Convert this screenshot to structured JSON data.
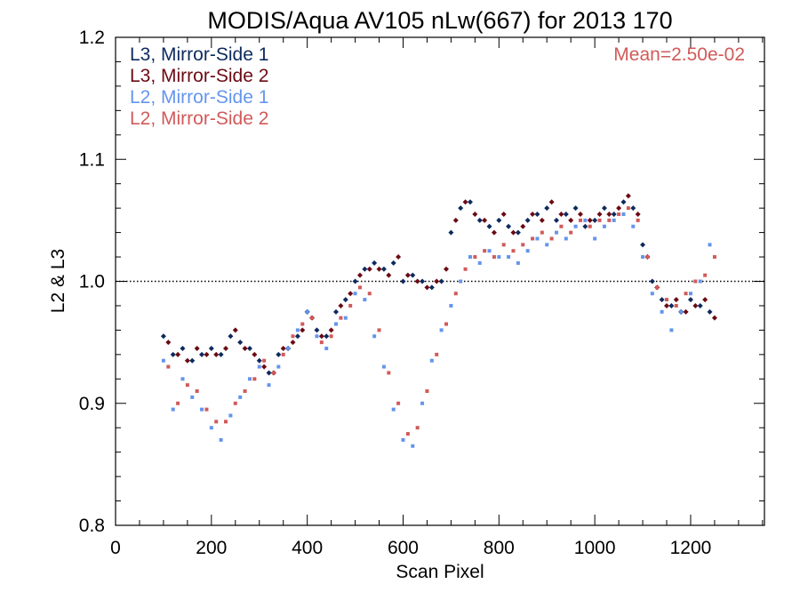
{
  "chart_data": {
    "type": "scatter",
    "title": "MODIS/Aqua AV105 nLw(667) for 2013 170",
    "xlabel": "Scan Pixel",
    "ylabel": "L2 & L3",
    "xlim": [
      0,
      1354
    ],
    "ylim": [
      0.8,
      1.2
    ],
    "xticks": [
      0,
      200,
      400,
      600,
      800,
      1000,
      1200
    ],
    "xtick_labels": [
      "0",
      "200",
      "400",
      "600",
      "800",
      "1000",
      "1200"
    ],
    "yticks": [
      0.8,
      0.9,
      1.0,
      1.1,
      1.2
    ],
    "ytick_labels": [
      "0.8",
      "0.9",
      "1.0",
      "1.1",
      "1.2"
    ],
    "reference_line": 1.0,
    "grid": false,
    "legend_position": "top-left",
    "annotation": "Mean=2.50e-02",
    "annotation_color": "#d15a5a",
    "series": [
      {
        "name": "L3, Mirror-Side 1",
        "color": "#0d2a5e",
        "marker": "diamond",
        "x": [
          100,
          120,
          140,
          160,
          180,
          200,
          220,
          240,
          260,
          280,
          300,
          320,
          340,
          360,
          380,
          400,
          420,
          440,
          460,
          480,
          500,
          520,
          540,
          560,
          580,
          600,
          620,
          640,
          660,
          680,
          700,
          720,
          740,
          760,
          780,
          800,
          820,
          840,
          860,
          880,
          900,
          920,
          940,
          960,
          980,
          1000,
          1020,
          1040,
          1060,
          1080,
          1100,
          1120,
          1140,
          1160,
          1180,
          1200,
          1220,
          1240
        ],
        "y": [
          0.955,
          0.94,
          0.945,
          0.935,
          0.94,
          0.945,
          0.94,
          0.955,
          0.95,
          0.945,
          0.935,
          0.925,
          0.94,
          0.945,
          0.955,
          0.975,
          0.96,
          0.955,
          0.975,
          0.985,
          1.0,
          1.01,
          1.015,
          1.01,
          1.015,
          1.0,
          1.005,
          1.0,
          0.995,
          1.0,
          1.04,
          1.06,
          1.065,
          1.05,
          1.045,
          1.05,
          1.045,
          1.04,
          1.05,
          1.055,
          1.06,
          1.05,
          1.055,
          1.06,
          1.045,
          1.05,
          1.06,
          1.055,
          1.065,
          1.06,
          1.03,
          1.0,
          0.985,
          0.98,
          0.975,
          0.985,
          0.98,
          0.975
        ]
      },
      {
        "name": "L3, Mirror-Side 2",
        "color": "#6b0a14",
        "marker": "diamond",
        "x": [
          110,
          130,
          150,
          170,
          190,
          210,
          230,
          250,
          270,
          290,
          310,
          330,
          350,
          370,
          390,
          410,
          430,
          450,
          470,
          490,
          510,
          530,
          550,
          570,
          590,
          610,
          630,
          650,
          670,
          690,
          710,
          730,
          750,
          770,
          790,
          810,
          830,
          850,
          870,
          890,
          910,
          930,
          950,
          970,
          990,
          1010,
          1030,
          1050,
          1070,
          1090,
          1110,
          1130,
          1150,
          1170,
          1190,
          1210,
          1230,
          1250
        ],
        "y": [
          0.95,
          0.94,
          0.935,
          0.945,
          0.94,
          0.94,
          0.945,
          0.96,
          0.945,
          0.94,
          0.93,
          0.925,
          0.945,
          0.95,
          0.96,
          0.97,
          0.955,
          0.96,
          0.98,
          0.99,
          1.005,
          1.01,
          1.01,
          1.005,
          1.02,
          1.005,
          1.0,
          0.995,
          1.0,
          1.01,
          1.05,
          1.065,
          1.055,
          1.05,
          1.04,
          1.055,
          1.04,
          1.045,
          1.055,
          1.05,
          1.065,
          1.055,
          1.05,
          1.055,
          1.05,
          1.055,
          1.055,
          1.06,
          1.07,
          1.055,
          1.02,
          0.995,
          0.98,
          0.985,
          0.975,
          0.98,
          0.985,
          0.97
        ]
      },
      {
        "name": "L2, Mirror-Side 1",
        "color": "#6495ed",
        "marker": "square",
        "x": [
          100,
          120,
          140,
          160,
          180,
          200,
          220,
          240,
          260,
          280,
          300,
          320,
          340,
          360,
          380,
          400,
          420,
          440,
          460,
          480,
          500,
          520,
          540,
          560,
          580,
          600,
          620,
          640,
          660,
          680,
          700,
          720,
          740,
          760,
          780,
          800,
          820,
          840,
          860,
          880,
          900,
          920,
          940,
          960,
          980,
          1000,
          1020,
          1040,
          1060,
          1080,
          1100,
          1120,
          1140,
          1160,
          1180,
          1200,
          1220,
          1240
        ],
        "y": [
          0.935,
          0.895,
          0.92,
          0.905,
          0.895,
          0.88,
          0.87,
          0.89,
          0.905,
          0.92,
          0.93,
          0.915,
          0.93,
          0.945,
          0.96,
          0.975,
          0.955,
          0.945,
          0.965,
          0.97,
          0.99,
          0.985,
          0.955,
          0.93,
          0.895,
          0.87,
          0.865,
          0.9,
          0.935,
          0.96,
          0.98,
          1.0,
          1.02,
          1.015,
          1.025,
          1.02,
          1.02,
          1.015,
          1.025,
          1.035,
          1.03,
          1.04,
          1.035,
          1.045,
          1.05,
          1.035,
          1.045,
          1.05,
          1.055,
          1.045,
          1.02,
          0.99,
          0.975,
          0.96,
          0.975,
          0.99,
          1.0,
          1.03
        ]
      },
      {
        "name": "L2, Mirror-Side 2",
        "color": "#d15a5a",
        "marker": "square",
        "x": [
          110,
          130,
          150,
          170,
          190,
          210,
          230,
          250,
          270,
          290,
          310,
          330,
          350,
          370,
          390,
          410,
          430,
          450,
          470,
          490,
          510,
          530,
          550,
          570,
          590,
          610,
          630,
          650,
          670,
          690,
          710,
          730,
          750,
          770,
          790,
          810,
          830,
          850,
          870,
          890,
          910,
          930,
          950,
          970,
          990,
          1010,
          1030,
          1050,
          1070,
          1090,
          1110,
          1130,
          1150,
          1170,
          1190,
          1210,
          1230,
          1250
        ],
        "y": [
          0.93,
          0.9,
          0.915,
          0.91,
          0.895,
          0.885,
          0.885,
          0.9,
          0.91,
          0.92,
          0.935,
          0.925,
          0.94,
          0.955,
          0.965,
          0.97,
          0.95,
          0.955,
          0.97,
          0.98,
          0.995,
          0.99,
          0.96,
          0.925,
          0.9,
          0.875,
          0.88,
          0.91,
          0.94,
          0.965,
          0.99,
          1.01,
          1.02,
          1.025,
          1.02,
          1.03,
          1.025,
          1.03,
          1.035,
          1.04,
          1.035,
          1.045,
          1.04,
          1.05,
          1.045,
          1.05,
          1.05,
          1.055,
          1.06,
          1.05,
          1.02,
          0.995,
          0.985,
          0.98,
          0.99,
          1.0,
          1.005,
          1.02
        ]
      }
    ]
  }
}
